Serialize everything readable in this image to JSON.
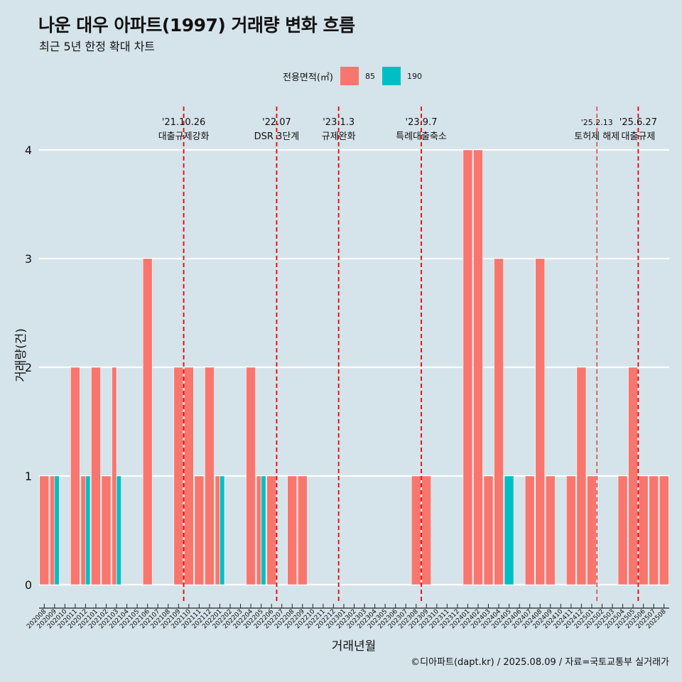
{
  "title": "나운 대우 아파트(1997) 거래량 변화 흐름",
  "subtitle": "최근 5년 한정 확대 차트",
  "caption": "©디아파트(dapt.kr) / 2025.08.09 / 자료=국토교통부 실거래가",
  "legend": {
    "title": "전용면적(㎡)",
    "items": [
      {
        "label": "85",
        "color": "#f8766d"
      },
      {
        "label": "190",
        "color": "#00bfc4"
      }
    ]
  },
  "chart_data": {
    "type": "bar",
    "xlabel": "거래년월",
    "ylabel": "거래량(건)",
    "ylim": [
      0,
      4
    ],
    "yticks": [
      "0",
      "1",
      "2",
      "3",
      "4"
    ],
    "categories": [
      "202008",
      "202009",
      "202010",
      "202011",
      "202012",
      "202101",
      "202102",
      "202103",
      "202104",
      "202105",
      "202106",
      "202107",
      "202108",
      "202109",
      "202110",
      "202111",
      "202112",
      "202201",
      "202202",
      "202203",
      "202204",
      "202205",
      "202206",
      "202207",
      "202208",
      "202209",
      "202210",
      "202211",
      "202212",
      "202301",
      "202302",
      "202303",
      "202304",
      "202305",
      "202306",
      "202307",
      "202308",
      "202309",
      "202310",
      "202311",
      "202312",
      "202401",
      "202402",
      "202403",
      "202404",
      "202405",
      "202406",
      "202407",
      "202408",
      "202409",
      "202410",
      "202411",
      "202412",
      "202501",
      "202502",
      "202503",
      "202504",
      "202505",
      "202506",
      "202507",
      "202508"
    ],
    "series": [
      {
        "name": "85",
        "color": "#f8766d",
        "values": [
          1,
          1,
          0,
          2,
          1,
          2,
          1,
          2,
          0,
          0,
          3,
          0,
          0,
          2,
          2,
          1,
          2,
          1,
          0,
          0,
          2,
          1,
          1,
          0,
          1,
          1,
          0,
          0,
          0,
          0,
          0,
          0,
          0,
          0,
          0,
          0,
          1,
          1,
          0,
          0,
          0,
          4,
          4,
          1,
          3,
          0,
          0,
          1,
          3,
          1,
          0,
          1,
          2,
          1,
          0,
          0,
          1,
          2,
          1,
          1,
          1
        ]
      },
      {
        "name": "190",
        "color": "#00bfc4",
        "values": [
          0,
          1,
          0,
          0,
          1,
          0,
          0,
          1,
          0,
          0,
          0,
          0,
          0,
          0,
          0,
          0,
          0,
          1,
          0,
          0,
          0,
          1,
          0,
          0,
          0,
          0,
          0,
          0,
          0,
          0,
          0,
          0,
          0,
          0,
          0,
          0,
          0,
          0,
          0,
          0,
          0,
          0,
          0,
          0,
          0,
          1,
          0,
          0,
          0,
          0,
          0,
          0,
          0,
          0,
          0,
          0,
          0,
          0,
          0,
          0,
          0
        ]
      }
    ],
    "events": [
      {
        "month": "202110",
        "date": "'21.10.26",
        "label": "대출규제강화",
        "style": "thick"
      },
      {
        "month": "202207",
        "date": "'22.07",
        "label": "DSR 3단계",
        "style": "thick"
      },
      {
        "month": "202301",
        "date": "'23.1.3",
        "label": "규제완화",
        "style": "thick"
      },
      {
        "month": "202309",
        "date": "'23.9.7",
        "label": "특례대출축소",
        "style": "thick"
      },
      {
        "month": "202502",
        "date": "'25.2.13",
        "label": "토허제 해제",
        "style": "thin"
      },
      {
        "month": "202506",
        "date": "'25.6.27",
        "label": "대출규제",
        "style": "thick"
      }
    ],
    "grid": true,
    "legend_position": "top"
  }
}
